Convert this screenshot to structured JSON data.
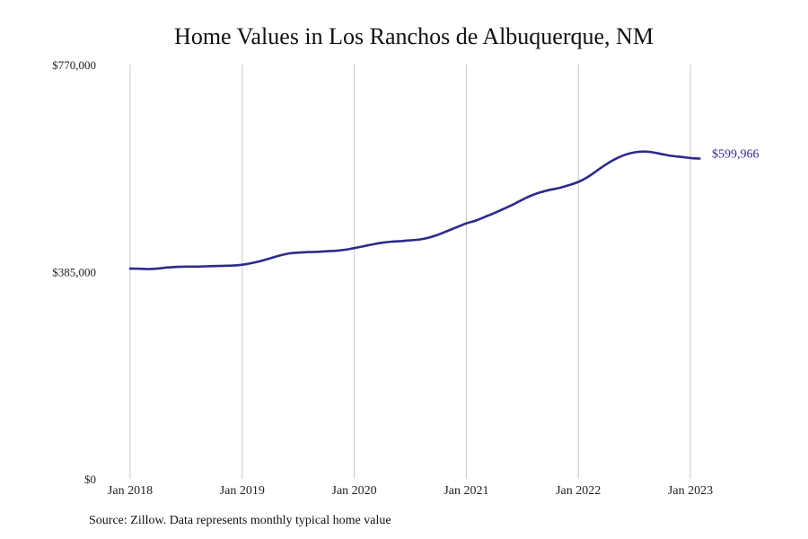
{
  "chart_data": {
    "type": "line",
    "title": "Home Values in Los Ranchos de Albuquerque, NM",
    "source": "Source: Zillow. Data represents monthly typical home value",
    "ylim": [
      0,
      770000
    ],
    "xlim": [
      "2018-01",
      "2023-02"
    ],
    "grid": "vertical",
    "y_ticks": [
      {
        "value": 0,
        "label": "$0"
      },
      {
        "value": 385000,
        "label": "$385,000"
      },
      {
        "value": 770000,
        "label": "$770,000"
      }
    ],
    "x_ticks": [
      {
        "value": "2018-01",
        "label": "Jan 2018"
      },
      {
        "value": "2019-01",
        "label": "Jan 2019"
      },
      {
        "value": "2020-01",
        "label": "Jan 2020"
      },
      {
        "value": "2021-01",
        "label": "Jan 2021"
      },
      {
        "value": "2022-01",
        "label": "Jan 2022"
      },
      {
        "value": "2023-01",
        "label": "Jan 2023"
      }
    ],
    "end_label": "$599,966",
    "series": [
      {
        "color": "#2e2a8a",
        "points": [
          [
            "2018-01",
            391000
          ],
          [
            "2018-02",
            390500
          ],
          [
            "2018-03",
            390000
          ],
          [
            "2018-04",
            391000
          ],
          [
            "2018-05",
            393000
          ],
          [
            "2018-06",
            394000
          ],
          [
            "2018-07",
            394500
          ],
          [
            "2018-08",
            394500
          ],
          [
            "2018-09",
            395000
          ],
          [
            "2018-10",
            395500
          ],
          [
            "2018-11",
            396000
          ],
          [
            "2018-12",
            396500
          ],
          [
            "2019-01",
            398000
          ],
          [
            "2019-02",
            401000
          ],
          [
            "2019-03",
            405000
          ],
          [
            "2019-04",
            410000
          ],
          [
            "2019-05",
            415000
          ],
          [
            "2019-06",
            419000
          ],
          [
            "2019-07",
            420500
          ],
          [
            "2019-08",
            421500
          ],
          [
            "2019-09",
            422000
          ],
          [
            "2019-10",
            423000
          ],
          [
            "2019-11",
            424000
          ],
          [
            "2019-12",
            426000
          ],
          [
            "2020-01",
            429000
          ],
          [
            "2020-02",
            432500
          ],
          [
            "2020-03",
            436000
          ],
          [
            "2020-04",
            439000
          ],
          [
            "2020-05",
            441000
          ],
          [
            "2020-06",
            442000
          ],
          [
            "2020-07",
            443500
          ],
          [
            "2020-08",
            445000
          ],
          [
            "2020-09",
            448500
          ],
          [
            "2020-10",
            454000
          ],
          [
            "2020-11",
            461000
          ],
          [
            "2020-12",
            468000
          ],
          [
            "2021-01",
            475000
          ],
          [
            "2021-02",
            480000
          ],
          [
            "2021-03",
            487000
          ],
          [
            "2021-04",
            494000
          ],
          [
            "2021-05",
            502000
          ],
          [
            "2021-06",
            510000
          ],
          [
            "2021-07",
            519000
          ],
          [
            "2021-08",
            527000
          ],
          [
            "2021-09",
            533000
          ],
          [
            "2021-10",
            537500
          ],
          [
            "2021-11",
            541000
          ],
          [
            "2021-12",
            546000
          ],
          [
            "2022-01",
            552000
          ],
          [
            "2022-02",
            561000
          ],
          [
            "2022-03",
            573000
          ],
          [
            "2022-04",
            585000
          ],
          [
            "2022-05",
            595000
          ],
          [
            "2022-06",
            602500
          ],
          [
            "2022-07",
            607000
          ],
          [
            "2022-08",
            608500
          ],
          [
            "2022-09",
            607000
          ],
          [
            "2022-10",
            603500
          ],
          [
            "2022-11",
            600500
          ],
          [
            "2022-12",
            598500
          ],
          [
            "2023-01",
            596500
          ],
          [
            "2023-02",
            595500
          ]
        ]
      }
    ]
  }
}
